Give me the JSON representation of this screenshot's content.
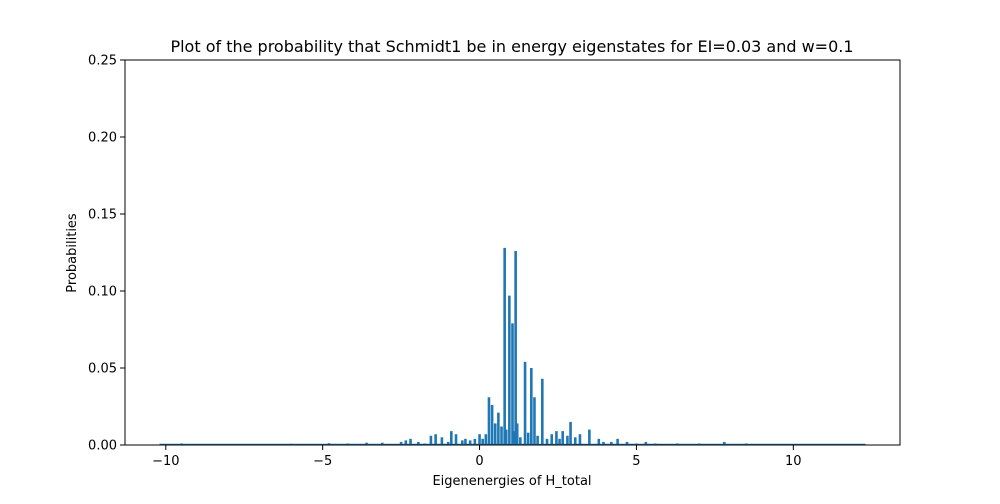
{
  "chart_data": {
    "type": "bar",
    "title": "Plot of the probability that Schmidt1 be in energy eigenstates for EI=0.03 and w=0.1",
    "xlabel": "Eigenenergies of H_total",
    "ylabel": "Probabilities",
    "xlim": [
      -11.3,
      13.4
    ],
    "ylim": [
      0,
      0.25
    ],
    "x_ticks": [
      -10,
      -5,
      0,
      5,
      10
    ],
    "x_tick_labels": [
      "−10",
      "−5",
      "0",
      "5",
      "10"
    ],
    "y_ticks": [
      0,
      0.05,
      0.1,
      0.15,
      0.2,
      0.25
    ],
    "y_tick_labels": [
      "0.00",
      "0.05",
      "0.10",
      "0.15",
      "0.20",
      "0.25"
    ],
    "grid": false,
    "legend": "none",
    "bar_color": "#1f77b4",
    "baseline_range": [
      -10.2,
      12.3
    ],
    "x": [
      -9.5,
      -8.3,
      -7.2,
      -6.0,
      -4.8,
      -4.2,
      -3.6,
      -3.1,
      -2.5,
      -2.35,
      -2.2,
      -1.95,
      -1.75,
      -1.55,
      -1.4,
      -1.2,
      -1.0,
      -0.9,
      -0.75,
      -0.55,
      -0.45,
      -0.3,
      -0.15,
      0.0,
      0.1,
      0.2,
      0.3,
      0.4,
      0.5,
      0.6,
      0.7,
      0.8,
      0.85,
      0.95,
      1.05,
      1.1,
      1.15,
      1.2,
      1.3,
      1.45,
      1.55,
      1.65,
      1.75,
      1.85,
      2.0,
      2.15,
      2.3,
      2.45,
      2.55,
      2.65,
      2.8,
      2.9,
      3.05,
      3.2,
      3.5,
      3.8,
      3.95,
      4.2,
      4.4,
      4.7,
      5.0,
      5.3,
      5.6,
      6.3,
      7.0,
      7.8,
      8.5
    ],
    "values": [
      0.001,
      0.0005,
      0.0005,
      0.0008,
      0.0012,
      0.001,
      0.0015,
      0.0015,
      0.002,
      0.003,
      0.004,
      0.002,
      0.001,
      0.006,
      0.007,
      0.005,
      0.002,
      0.009,
      0.007,
      0.003,
      0.004,
      0.003,
      0.004,
      0.007,
      0.004,
      0.007,
      0.031,
      0.026,
      0.014,
      0.021,
      0.012,
      0.128,
      0.01,
      0.097,
      0.079,
      0.009,
      0.126,
      0.014,
      0.005,
      0.054,
      0.008,
      0.05,
      0.031,
      0.006,
      0.043,
      0.004,
      0.007,
      0.009,
      0.004,
      0.009,
      0.006,
      0.015,
      0.005,
      0.007,
      0.01,
      0.004,
      0.002,
      0.002,
      0.004,
      0.002,
      0.001,
      0.002,
      0.001,
      0.001,
      0.001,
      0.002,
      0.001
    ]
  }
}
